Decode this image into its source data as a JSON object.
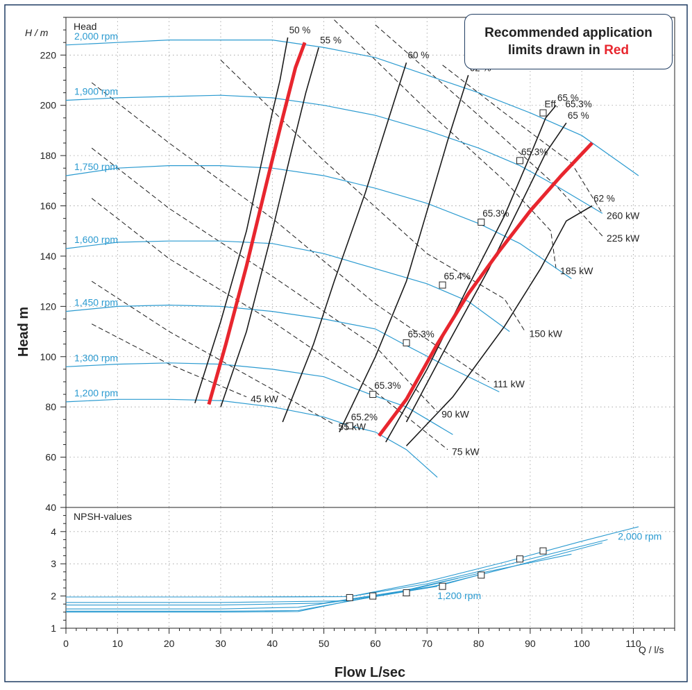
{
  "chart_data": {
    "type": "line",
    "title": "",
    "xlabel": "Flow L/sec",
    "ylabel": "Head m",
    "x_axis_unit": "Q / l/s",
    "y_axis_unit": "H / m",
    "panel_head_label": "Head",
    "panel_npsh_label": "NPSH-values",
    "xlim": [
      0,
      118
    ],
    "ylim_head": [
      40,
      235
    ],
    "ylim_npsh": [
      1,
      4.75
    ],
    "x_ticks": [
      "0",
      "10",
      "20",
      "30",
      "40",
      "50",
      "60",
      "70",
      "80",
      "90",
      "100",
      "110"
    ],
    "y_ticks_head": [
      "40",
      "60",
      "80",
      "100",
      "120",
      "140",
      "160",
      "180",
      "200",
      "220"
    ],
    "y_ticks_npsh": [
      "1",
      "2",
      "3",
      "4"
    ],
    "grid": "dotted",
    "note": {
      "text_before": "Recommended application limits drawn in ",
      "text_red": "Red",
      "text_red_color": "#e8262e"
    },
    "colors": {
      "speed_curves": "#2a9ad0",
      "efficiency_curves": "#1a1a1a",
      "power_lines": "#1a1a1a",
      "limits": "#e8262e",
      "frame": "#1f3c62"
    },
    "speed_curves": [
      {
        "name": "2,000 rpm",
        "points": [
          [
            0,
            224
          ],
          [
            10,
            225
          ],
          [
            20,
            226
          ],
          [
            30,
            226
          ],
          [
            40,
            226
          ],
          [
            50,
            223
          ],
          [
            60,
            219
          ],
          [
            70,
            212
          ],
          [
            80,
            205
          ],
          [
            90,
            197
          ],
          [
            100,
            188
          ],
          [
            111,
            172
          ]
        ]
      },
      {
        "name": "1,900 rpm",
        "points": [
          [
            0,
            202
          ],
          [
            10,
            203
          ],
          [
            20,
            203.5
          ],
          [
            30,
            204
          ],
          [
            40,
            203
          ],
          [
            50,
            200
          ],
          [
            60,
            196
          ],
          [
            70,
            190
          ],
          [
            80,
            183
          ],
          [
            88,
            176
          ],
          [
            95,
            168
          ],
          [
            104,
            157
          ]
        ]
      },
      {
        "name": "1,750 rpm",
        "points": [
          [
            0,
            172
          ],
          [
            10,
            175
          ],
          [
            20,
            176
          ],
          [
            30,
            176
          ],
          [
            40,
            175
          ],
          [
            50,
            172
          ],
          [
            60,
            167
          ],
          [
            70,
            161
          ],
          [
            80,
            153
          ],
          [
            88,
            145
          ],
          [
            98,
            131
          ]
        ]
      },
      {
        "name": "1,600 rpm",
        "points": [
          [
            0,
            143
          ],
          [
            10,
            145.5
          ],
          [
            20,
            146
          ],
          [
            30,
            146
          ],
          [
            40,
            145
          ],
          [
            50,
            141
          ],
          [
            60,
            135
          ],
          [
            70,
            129
          ],
          [
            78,
            122
          ],
          [
            86,
            110
          ]
        ]
      },
      {
        "name": "1,450 rpm",
        "points": [
          [
            0,
            118
          ],
          [
            10,
            120
          ],
          [
            20,
            120.5
          ],
          [
            30,
            120
          ],
          [
            40,
            118
          ],
          [
            50,
            115
          ],
          [
            60,
            111
          ],
          [
            65,
            105.5
          ],
          [
            73,
            97
          ],
          [
            84,
            86
          ]
        ]
      },
      {
        "name": "1,300 rpm",
        "points": [
          [
            0,
            96
          ],
          [
            10,
            97
          ],
          [
            20,
            97.5
          ],
          [
            30,
            97
          ],
          [
            40,
            95
          ],
          [
            50,
            92
          ],
          [
            59,
            85
          ],
          [
            66,
            80
          ],
          [
            75,
            69
          ]
        ]
      },
      {
        "name": "1,200 rpm",
        "points": [
          [
            0,
            82
          ],
          [
            10,
            83
          ],
          [
            20,
            83
          ],
          [
            30,
            82.5
          ],
          [
            40,
            80
          ],
          [
            50,
            76
          ],
          [
            55,
            72.5
          ],
          [
            60,
            70
          ],
          [
            66,
            63
          ],
          [
            72,
            52
          ]
        ]
      }
    ],
    "efficiency_curves": [
      {
        "name": "50 %",
        "points": [
          [
            25,
            81.5
          ],
          [
            30,
            114
          ],
          [
            35,
            150
          ],
          [
            38,
            178
          ],
          [
            40,
            197
          ],
          [
            41.5,
            210
          ],
          [
            43,
            227
          ]
        ]
      },
      {
        "name": "55 %",
        "points": [
          [
            30,
            80
          ],
          [
            35,
            110
          ],
          [
            40,
            150
          ],
          [
            43.5,
            180
          ],
          [
            46.5,
            205
          ],
          [
            49,
            223
          ]
        ]
      },
      {
        "name": "60 %",
        "points": [
          [
            42,
            74
          ],
          [
            48,
            105
          ],
          [
            52,
            130
          ],
          [
            58,
            165
          ],
          [
            62,
            191
          ],
          [
            66,
            217
          ]
        ]
      },
      {
        "name": "62 %",
        "points": [
          [
            53,
            70
          ],
          [
            60,
            100
          ],
          [
            66,
            130
          ],
          [
            70,
            158
          ],
          [
            74,
            186
          ],
          [
            78,
            212
          ]
        ]
      },
      {
        "name": "65 %",
        "points": [
          [
            62,
            66
          ],
          [
            70,
            95
          ],
          [
            78,
            128
          ],
          [
            85,
            156
          ],
          [
            90,
            180
          ],
          [
            93,
            195
          ],
          [
            95,
            200
          ]
        ]
      },
      {
        "name": "65 % (2)",
        "points": [
          [
            66,
            74
          ],
          [
            74,
            105
          ],
          [
            82,
            135
          ],
          [
            88,
            160
          ],
          [
            93,
            181
          ],
          [
            97,
            193
          ]
        ]
      },
      {
        "name": "62 % (3)",
        "points": [
          [
            66,
            64.5
          ],
          [
            75,
            84
          ],
          [
            85,
            112
          ],
          [
            92,
            135
          ],
          [
            97,
            154
          ],
          [
            102,
            160
          ]
        ]
      }
    ],
    "power_lines": [
      {
        "name": "45 kW",
        "points": [
          [
            5,
            113
          ],
          [
            20,
            97
          ],
          [
            35,
            84
          ]
        ]
      },
      {
        "name": "55 kW",
        "points": [
          [
            5,
            130
          ],
          [
            20,
            110
          ],
          [
            40,
            87
          ],
          [
            52,
            73
          ]
        ]
      },
      {
        "name": "75 kW",
        "points": [
          [
            5,
            163
          ],
          [
            20,
            139
          ],
          [
            40,
            114
          ],
          [
            60,
            86
          ],
          [
            74,
            63
          ]
        ]
      },
      {
        "name": "90 kW",
        "points": [
          [
            5,
            183
          ],
          [
            20,
            159
          ],
          [
            40,
            132
          ],
          [
            60,
            104
          ],
          [
            72,
            78
          ]
        ]
      },
      {
        "name": "111 kW",
        "points": [
          [
            5,
            209
          ],
          [
            20,
            185
          ],
          [
            40,
            155
          ],
          [
            60,
            121
          ],
          [
            82,
            90
          ]
        ]
      },
      {
        "name": "150 kW",
        "points": [
          [
            30,
            218
          ],
          [
            50,
            178
          ],
          [
            70,
            141
          ],
          [
            85,
            123
          ],
          [
            89,
            110
          ]
        ]
      },
      {
        "name": "185 kW",
        "points": [
          [
            52,
            234
          ],
          [
            70,
            198
          ],
          [
            85,
            170
          ],
          [
            94,
            150
          ],
          [
            95,
            135
          ]
        ]
      },
      {
        "name": "225 kW",
        "points": [
          [
            60,
            232
          ],
          [
            80,
            196
          ],
          [
            95,
            168
          ],
          [
            104,
            148
          ]
        ]
      },
      {
        "name": "260 kW",
        "points": [
          [
            73,
            216
          ],
          [
            85,
            197
          ],
          [
            98,
            177
          ],
          [
            104,
            157
          ]
        ]
      }
    ],
    "limit_lines": [
      {
        "name": "left limit",
        "points": [
          [
            27.7,
            81
          ],
          [
            31,
            105
          ],
          [
            35,
            136
          ],
          [
            39,
            170
          ],
          [
            42,
            195
          ],
          [
            44.5,
            215
          ],
          [
            46.3,
            225
          ]
        ]
      },
      {
        "name": "right limit",
        "points": [
          [
            60.7,
            68.5
          ],
          [
            66,
            83
          ],
          [
            72,
            105
          ],
          [
            78,
            125
          ],
          [
            84,
            142
          ],
          [
            90,
            158
          ],
          [
            96,
            172
          ],
          [
            102,
            185
          ]
        ]
      }
    ],
    "efficiency_points": [
      {
        "label": "Eff.",
        "value": "65.3%",
        "x": 92.5,
        "y": 197
      },
      {
        "label": "",
        "value": "65.3%",
        "x": 88,
        "y": 178
      },
      {
        "label": "",
        "value": "65.3%",
        "x": 80.5,
        "y": 153.5
      },
      {
        "label": "",
        "value": "65.4%",
        "x": 73,
        "y": 128.5
      },
      {
        "label": "",
        "value": "65.3%",
        "x": 66,
        "y": 105.5
      },
      {
        "label": "",
        "value": "65.3%",
        "x": 59.5,
        "y": 85
      },
      {
        "label": "",
        "value": "65.2%",
        "x": 55,
        "y": 72.5
      }
    ],
    "npsh_curves": [
      {
        "name": "2,000 rpm",
        "points": [
          [
            0,
            1.97
          ],
          [
            20,
            1.97
          ],
          [
            40,
            1.97
          ],
          [
            55,
            1.98
          ],
          [
            70,
            2.45
          ],
          [
            85,
            3.05
          ],
          [
            100,
            3.7
          ],
          [
            111,
            4.15
          ]
        ]
      },
      {
        "name": "1,900 rpm",
        "points": [
          [
            0,
            1.97
          ],
          [
            30,
            1.97
          ],
          [
            55,
            1.98
          ],
          [
            70,
            2.38
          ],
          [
            85,
            2.95
          ],
          [
            105,
            3.75
          ]
        ]
      },
      {
        "name": "1,750 rpm",
        "points": [
          [
            0,
            1.8
          ],
          [
            30,
            1.8
          ],
          [
            55,
            1.85
          ],
          [
            70,
            2.25
          ],
          [
            85,
            2.85
          ],
          [
            104,
            3.65
          ]
        ]
      },
      {
        "name": "1,600 rpm",
        "points": [
          [
            0,
            1.72
          ],
          [
            30,
            1.72
          ],
          [
            50,
            1.78
          ],
          [
            65,
            2.15
          ],
          [
            80,
            2.7
          ],
          [
            98,
            3.3
          ]
        ]
      },
      {
        "name": "1,450 rpm",
        "points": [
          [
            0,
            1.6
          ],
          [
            30,
            1.6
          ],
          [
            45,
            1.65
          ],
          [
            60,
            2.0
          ],
          [
            73,
            2.35
          ],
          [
            80,
            2.65
          ]
        ]
      },
      {
        "name": "1,300 rpm",
        "points": [
          [
            0,
            1.53
          ],
          [
            30,
            1.53
          ],
          [
            45,
            1.55
          ],
          [
            57,
            1.9
          ],
          [
            67,
            2.2
          ],
          [
            76,
            2.55
          ]
        ]
      },
      {
        "name": "1,200 rpm",
        "points": [
          [
            0,
            1.5
          ],
          [
            30,
            1.5
          ],
          [
            45,
            1.52
          ],
          [
            55,
            1.85
          ],
          [
            64,
            2.1
          ],
          [
            72,
            2.3
          ]
        ]
      }
    ],
    "npsh_points": [
      {
        "x": 55,
        "y": 1.95
      },
      {
        "x": 59.5,
        "y": 2.0
      },
      {
        "x": 66,
        "y": 2.1
      },
      {
        "x": 73,
        "y": 2.3
      },
      {
        "x": 80.5,
        "y": 2.65
      },
      {
        "x": 88,
        "y": 3.15
      },
      {
        "x": 92.5,
        "y": 3.4
      }
    ],
    "npsh_labels": [
      {
        "text": "2,000 rpm"
      },
      {
        "text": "1,200 rpm"
      }
    ]
  }
}
